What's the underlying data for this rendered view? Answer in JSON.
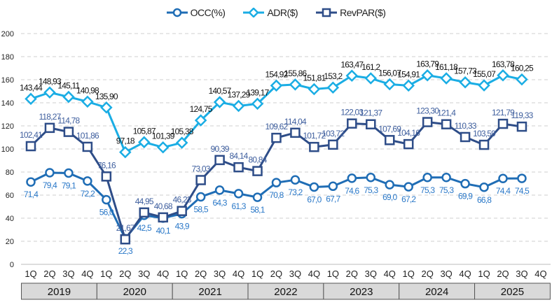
{
  "chart_data": {
    "type": "line",
    "title": "",
    "xlabel": "",
    "ylabel": "",
    "ylim": [
      0,
      200
    ],
    "yticks": [
      "0",
      "20",
      "40",
      "60",
      "80",
      "100",
      "120",
      "140",
      "160",
      "180",
      "200"
    ],
    "grid": true,
    "legend_position": "top-center",
    "quarters": [
      "1Q",
      "2Q",
      "3Q",
      "4Q"
    ],
    "years": [
      "2019",
      "2020",
      "2021",
      "2022",
      "2023",
      "2024",
      "2025"
    ],
    "series": [
      {
        "name": "OCC(%)",
        "color": "#1f6db5",
        "label_color": "#2a78c8",
        "marker": "circle",
        "label_pos": "below",
        "values": [
          71.4,
          79.4,
          79.1,
          72.2,
          56.0,
          22.3,
          42.5,
          40.1,
          43.9,
          58.5,
          64.3,
          61.3,
          58.1,
          70.8,
          73.2,
          67.0,
          67.7,
          74.6,
          75.3,
          69.0,
          67.2,
          75.3,
          75.3,
          69.9,
          66.8,
          74.4,
          74.5
        ],
        "labels": [
          "71,4",
          "79,4",
          "79,1",
          "72,2",
          "56,0",
          "22,3",
          "42,5",
          "40,1",
          "43,9",
          "58,5",
          "64,3",
          "61,3",
          "58,1",
          "70,8",
          "73,2",
          "67,0",
          "67,7",
          "74,6",
          "75,3",
          "69,0",
          "67,2",
          "75,3",
          "75,3",
          "69,9",
          "66,8",
          "74,4",
          "74,5"
        ]
      },
      {
        "name": "ADR($)",
        "color": "#1aade4",
        "label_color": "#111111",
        "marker": "diamond",
        "label_pos": "above",
        "values": [
          143.44,
          148.93,
          145.11,
          140.98,
          135.9,
          97.18,
          105.87,
          101.39,
          105.38,
          124.75,
          140.57,
          137.29,
          139.17,
          154.92,
          155.86,
          151.81,
          153.2,
          163.47,
          161.2,
          156.07,
          154.91,
          163.79,
          161.18,
          157.73,
          155.07,
          163.78,
          160.25
        ],
        "labels": [
          "143,44",
          "148,93",
          "145,11",
          "140,98",
          "135,90",
          "97,18",
          "105,87",
          "101,39",
          "105,38",
          "124,75",
          "140,57",
          "137,29",
          "139,17",
          "154,92",
          "155,86",
          "151,81",
          "153,2",
          "163,47",
          "161,2",
          "156,07",
          "154,91",
          "163,79",
          "161,18",
          "157,73",
          "155,07",
          "163,78",
          "160,25"
        ]
      },
      {
        "name": "RevPAR($)",
        "color": "#2e4d88",
        "label_color": "#3f5f9e",
        "marker": "square",
        "label_pos": "above",
        "values": [
          102.41,
          118.27,
          114.78,
          101.86,
          76.16,
          21.67,
          44.95,
          40.68,
          46.23,
          73.03,
          90.39,
          84.14,
          80.84,
          109.62,
          114.04,
          101.72,
          103.72,
          122.03,
          121.37,
          107.69,
          104.16,
          123.3,
          121.4,
          110.33,
          103.59,
          121.79,
          119.33
        ],
        "labels": [
          "102,41",
          "118,27",
          "114,78",
          "101,86",
          "76,16",
          "21,67",
          "44,95",
          "40,68",
          "46,23",
          "73,03",
          "90,39",
          "84,14",
          "80,84",
          "109,62",
          "114,04",
          "101,72",
          "103,72",
          "122,03",
          "121,37",
          "107,69",
          "104,16",
          "123,30",
          "121,4",
          "110,33",
          "103,59",
          "121,79",
          "119,33"
        ]
      }
    ]
  }
}
